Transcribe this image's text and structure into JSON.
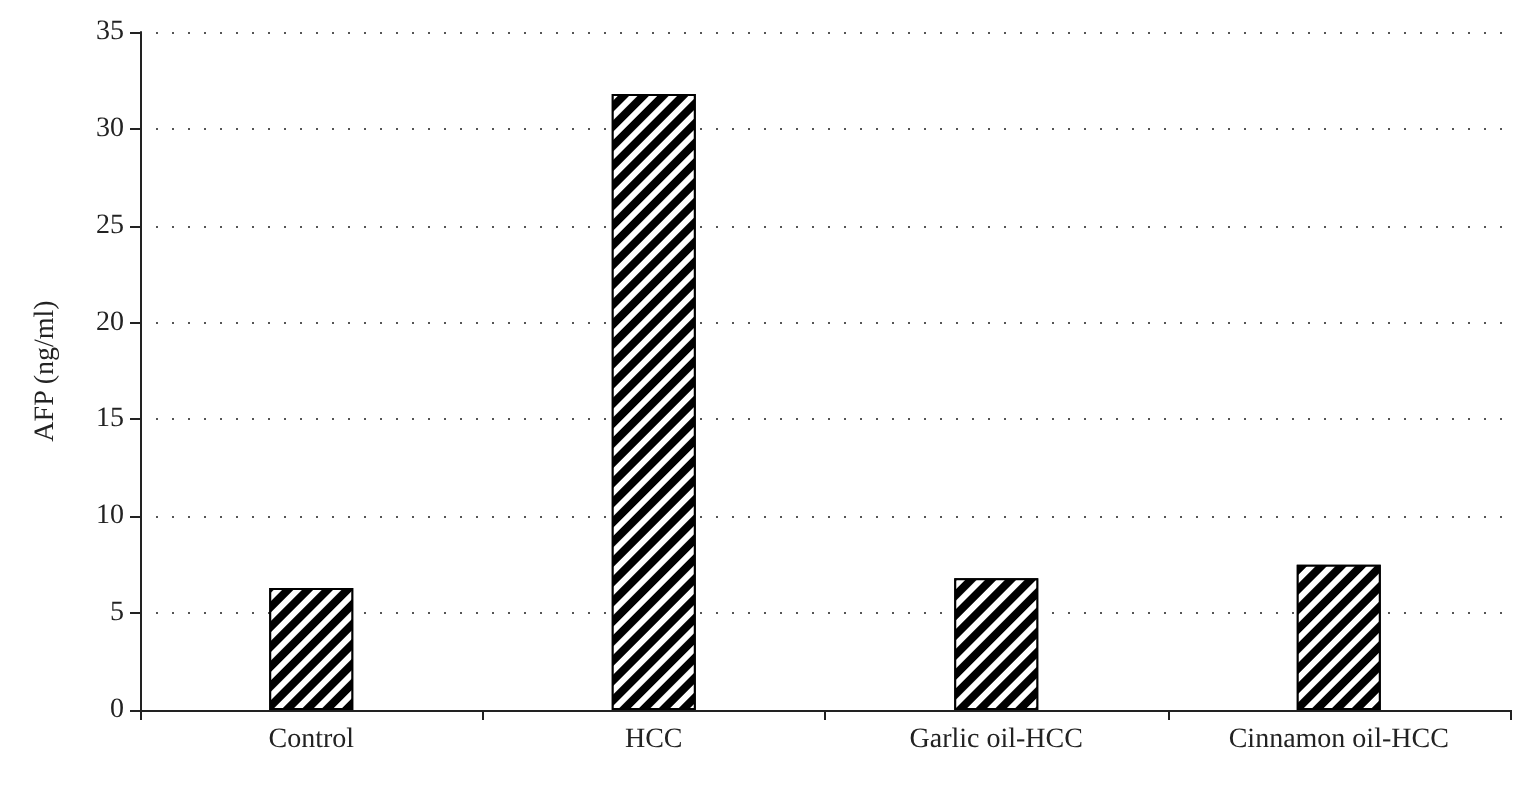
{
  "chart_data": {
    "type": "bar",
    "ylabel": "AFP (ng/ml)",
    "categories": [
      "Control",
      "HCC",
      "Garlic oil-HCC",
      "Cinnamon oil-HCC"
    ],
    "values": [
      6.3,
      31.8,
      6.8,
      7.5
    ],
    "color": "#000000",
    "ylim": [
      0,
      35
    ],
    "yticks": [
      0,
      5,
      10,
      15,
      20,
      25,
      30,
      35
    ],
    "grid": "y"
  }
}
